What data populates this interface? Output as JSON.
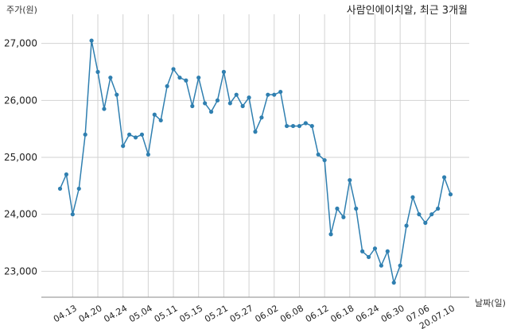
{
  "chart_data": {
    "type": "line",
    "title": "사람인에이치알, 최근 3개월",
    "xlabel": "날짜(일)",
    "ylabel": "주가(원)",
    "ylim": [
      22600,
      27400
    ],
    "yticks": [
      23000,
      24000,
      25000,
      26000,
      27000
    ],
    "ytick_labels": [
      "23,000",
      "24,000",
      "25,000",
      "26,000",
      "27,000"
    ],
    "xtick_labels": [
      "04.13",
      "04.20",
      "04.24",
      "05.04",
      "05.11",
      "05.15",
      "05.21",
      "05.27",
      "06.02",
      "06.08",
      "06.12",
      "06.18",
      "06.24",
      "06.30",
      "07.06",
      "20.07.10"
    ],
    "xtick_index": [
      2,
      6,
      10,
      14,
      18,
      22,
      26,
      30,
      34,
      38,
      42,
      46,
      50,
      54,
      58,
      62
    ],
    "grid": true,
    "series": [
      {
        "color": "#2f7fb0",
        "values": [
          24450,
          24700,
          24000,
          24450,
          25400,
          27050,
          26500,
          25850,
          26400,
          26100,
          25200,
          25400,
          25350,
          25400,
          25050,
          25750,
          25650,
          26250,
          26550,
          26400,
          26350,
          25900,
          26400,
          25950,
          25800,
          26000,
          26500,
          25950,
          26100,
          25900,
          26050,
          25450,
          25700,
          26100,
          26100,
          26150,
          25550,
          25550,
          25550,
          25600,
          25550,
          25050,
          24950,
          23650,
          24100,
          23950,
          24600,
          24100,
          23350,
          23250,
          23400,
          23100,
          23350,
          22800,
          23100,
          23800,
          24300,
          24000,
          23850,
          24000,
          24100,
          24650,
          24350
        ]
      }
    ]
  }
}
